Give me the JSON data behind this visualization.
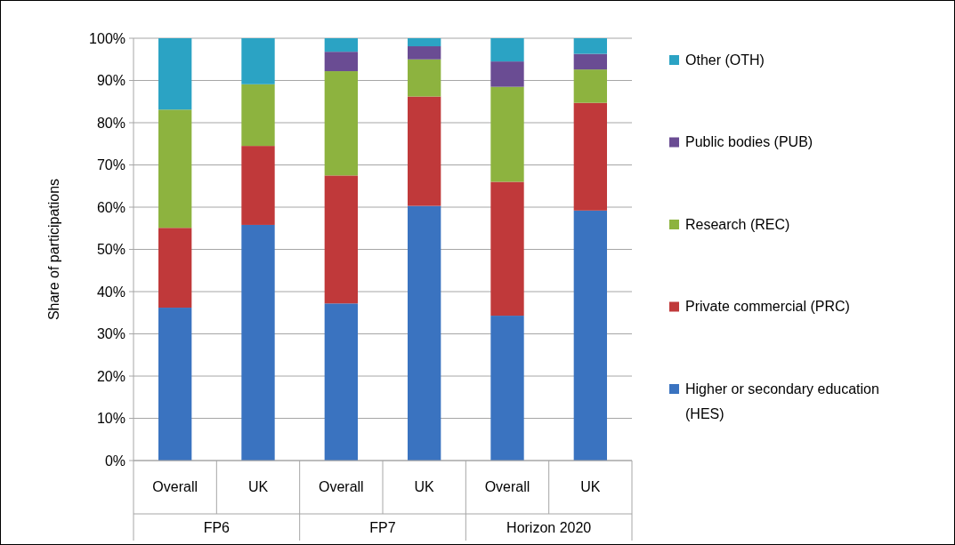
{
  "chart_data": {
    "type": "bar",
    "stacked": true,
    "ylabel": "Share of participations",
    "categories": [
      "Overall",
      "UK",
      "Overall",
      "UK",
      "Overall",
      "UK"
    ],
    "annotations": [
      "FP6",
      "FP7",
      "Horizon 2020"
    ],
    "series": [
      {
        "name": "Higher or secondary education (HES)",
        "color": "#3a73c0",
        "values": [
          36.2,
          55.8,
          37.2,
          60.3,
          34.3,
          59.2
        ]
      },
      {
        "name": "Private commercial (PRC)",
        "color": "#c0393a",
        "values": [
          18.9,
          18.7,
          30.3,
          25.9,
          31.7,
          25.5
        ]
      },
      {
        "name": "Research (REC)",
        "color": "#8db33f",
        "values": [
          28.0,
          14.6,
          24.7,
          8.8,
          22.5,
          7.9
        ]
      },
      {
        "name": "Public bodies (PUB)",
        "color": "#6a4c93",
        "values": [
          0,
          0,
          4.6,
          3.1,
          6.0,
          3.7
        ]
      },
      {
        "name": "Other (OTH)",
        "color": "#2ba3c4",
        "values": [
          16.9,
          10.9,
          3.2,
          1.9,
          5.5,
          3.7
        ]
      }
    ],
    "ylim": [
      0,
      100
    ],
    "yticks": [
      {
        "value": 0,
        "label": "0%"
      },
      {
        "value": 10,
        "label": "10%"
      },
      {
        "value": 20,
        "label": "20%"
      },
      {
        "value": 30,
        "label": "30%"
      },
      {
        "value": 40,
        "label": "40%"
      },
      {
        "value": 50,
        "label": "50%"
      },
      {
        "value": 60,
        "label": "60%"
      },
      {
        "value": 70,
        "label": "70%"
      },
      {
        "value": 80,
        "label": "80%"
      },
      {
        "value": 90,
        "label": "90%"
      },
      {
        "value": 100,
        "label": "100%"
      }
    ],
    "grid": "y",
    "legend": "right"
  }
}
